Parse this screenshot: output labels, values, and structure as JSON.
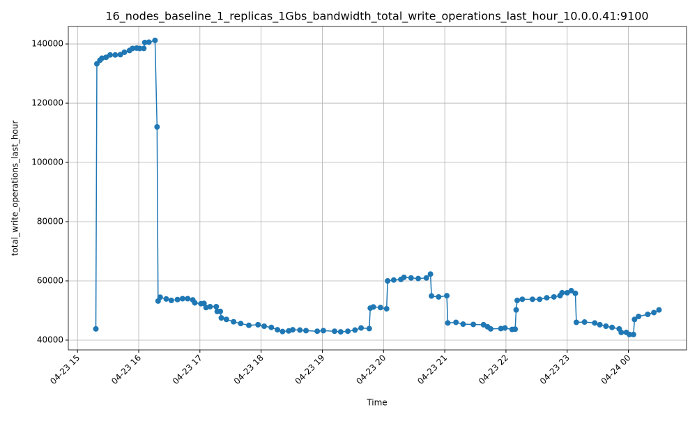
{
  "chart_data": {
    "type": "line",
    "title": "16_nodes_baseline_1_replicas_1Gbs_bandwidth_total_write_operations_last_hour_10.0.0.41:9100",
    "x_label": "Time",
    "y_label": "total_write_operations_last_hour",
    "color": "#1f77b4",
    "grid": true,
    "x": [
      "04-23 15:18",
      "04-23 15:19",
      "04-23 15:22",
      "04-23 15:24",
      "04-23 15:28",
      "04-23 15:32",
      "04-23 15:37",
      "04-23 15:42",
      "04-23 15:46",
      "04-23 15:51",
      "04-23 15:54",
      "04-23 15:58",
      "04-23 16:01",
      "04-23 16:05",
      "04-23 16:06",
      "04-23 16:10",
      "04-23 16:16",
      "04-23 16:18",
      "04-23 16:19",
      "04-23 16:21",
      "04-23 16:27",
      "04-23 16:32",
      "04-23 16:38",
      "04-23 16:43",
      "04-23 16:48",
      "04-23 16:53",
      "04-23 16:55",
      "04-23 17:01",
      "04-23 17:04",
      "04-23 17:06",
      "04-23 17:10",
      "04-23 17:16",
      "04-23 17:17",
      "04-23 17:20",
      "04-23 17:21",
      "04-23 17:26",
      "04-23 17:33",
      "04-23 17:40",
      "04-23 17:48",
      "04-23 17:57",
      "04-23 18:03",
      "04-23 18:10",
      "04-23 18:16",
      "04-23 18:21",
      "04-23 18:27",
      "04-23 18:31",
      "04-23 18:38",
      "04-23 18:44",
      "04-23 18:55",
      "04-23 19:01",
      "04-23 19:12",
      "04-23 19:18",
      "04-23 19:25",
      "04-23 19:32",
      "04-23 19:38",
      "04-23 19:46",
      "04-23 19:47",
      "04-23 19:50",
      "04-23 19:57",
      "04-23 20:03",
      "04-23 20:04",
      "04-23 20:10",
      "04-23 20:17",
      "04-23 20:20",
      "04-23 20:27",
      "04-23 20:34",
      "04-23 20:42",
      "04-23 20:46",
      "04-23 20:47",
      "04-23 20:54",
      "04-23 21:02",
      "04-23 21:03",
      "04-23 21:11",
      "04-23 21:18",
      "04-23 21:28",
      "04-23 21:38",
      "04-23 21:42",
      "04-23 21:45",
      "04-23 21:55",
      "04-23 21:59",
      "04-23 22:06",
      "04-23 22:09",
      "04-23 22:10",
      "04-23 22:11",
      "04-23 22:16",
      "04-23 22:26",
      "04-23 22:33",
      "04-23 22:40",
      "04-23 22:47",
      "04-23 22:53",
      "04-23 22:55",
      "04-23 23:00",
      "04-23 23:04",
      "04-23 23:08",
      "04-23 23:09",
      "04-23 23:17",
      "04-23 23:27",
      "04-23 23:32",
      "04-23 23:38",
      "04-23 23:44",
      "04-23 23:51",
      "04-23 23:53",
      "04-23 23:58",
      "04-24 00:01",
      "04-24 00:05",
      "04-24 00:06",
      "04-24 00:10",
      "04-24 00:19",
      "04-24 00:25",
      "04-24 00:30"
    ],
    "values": [
      43800,
      133300,
      134500,
      135200,
      135500,
      136300,
      136300,
      136400,
      137200,
      137800,
      138500,
      138600,
      138500,
      138500,
      140500,
      140600,
      141200,
      112000,
      53200,
      54500,
      53900,
      53400,
      53700,
      54000,
      54000,
      53600,
      52600,
      52300,
      52400,
      51000,
      51300,
      51300,
      49700,
      49700,
      47500,
      47000,
      46200,
      45600,
      45000,
      45200,
      44700,
      44300,
      43500,
      42900,
      43100,
      43500,
      43400,
      43200,
      43000,
      43200,
      43000,
      42800,
      43000,
      43400,
      44100,
      43900,
      50800,
      51200,
      51000,
      50600,
      60000,
      60300,
      60500,
      61200,
      61000,
      60800,
      61000,
      62300,
      54900,
      54600,
      55000,
      45800,
      46000,
      45400,
      45300,
      45200,
      44500,
      43800,
      43900,
      44100,
      43600,
      43700,
      50200,
      53400,
      53800,
      53800,
      53800,
      54300,
      54600,
      55000,
      56000,
      56000,
      56700,
      55800,
      46000,
      46100,
      45800,
      45200,
      44700,
      44300,
      43800,
      42600,
      42600,
      41900,
      41900,
      47000,
      48000,
      48700,
      49300,
      50200
    ],
    "xlim": [
      "04-23 14:51",
      "04-24 00:57"
    ],
    "xticks": [
      "04-23 15",
      "04-23 16",
      "04-23 17",
      "04-23 18",
      "04-23 19",
      "04-23 20",
      "04-23 21",
      "04-23 22",
      "04-23 23",
      "04-24 00"
    ],
    "ylim": [
      36700,
      145900
    ],
    "yticks": [
      40000,
      60000,
      80000,
      100000,
      120000,
      140000
    ]
  }
}
